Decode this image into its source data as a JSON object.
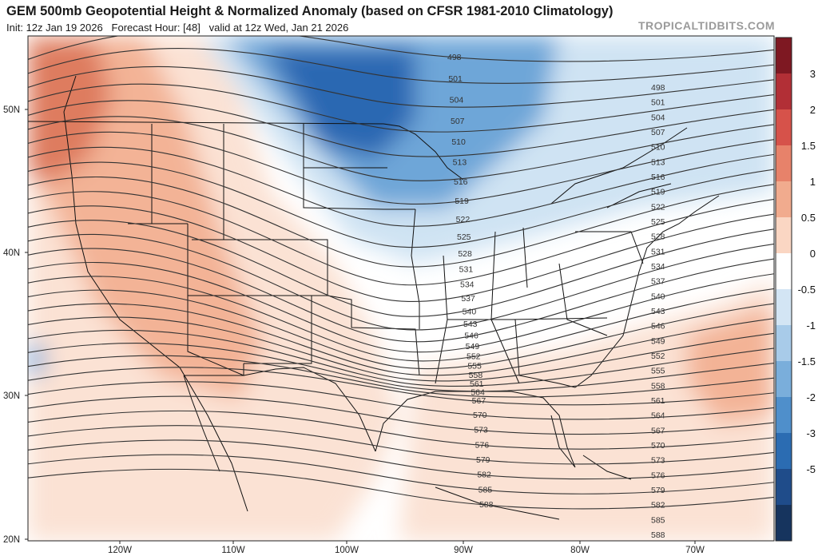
{
  "header": {
    "title": "GEM 500mb Geopotential Height & Normalized Anomaly (based on CFSR 1981-2010 Climatology)",
    "init": "Init: 12z Jan 19 2026",
    "forecast_hour": "Forecast Hour: [48]",
    "valid": "valid at 12z Wed, Jan 21 2026",
    "brand": "TROPICALTIDBITS.COM"
  },
  "map": {
    "lat_ticks": [
      "50N",
      "40N",
      "30N",
      "20N"
    ],
    "lon_ticks": [
      "120W",
      "110W",
      "100W",
      "90W",
      "80W",
      "70W"
    ],
    "contour_labels": [
      "498",
      "501",
      "504",
      "507",
      "510",
      "513",
      "516",
      "519",
      "522",
      "525",
      "528",
      "531",
      "534",
      "537",
      "540",
      "543",
      "546",
      "549",
      "552",
      "555",
      "558",
      "561",
      "564",
      "567",
      "570",
      "573",
      "576",
      "579",
      "582",
      "585",
      "588"
    ],
    "colors": {
      "strong_negative": "#2a68b2",
      "negative": "#6ea6d8",
      "weak_negative": "#cfe3f3",
      "neutral": "#ffffff",
      "weak_positive": "#fbe2d4",
      "positive": "#f3b396",
      "strong_positive": "#de7b5e"
    }
  },
  "colorbar": {
    "labels": [
      "3",
      "2",
      "1.5",
      "1",
      "0.5",
      "0",
      "-0.5",
      "-1",
      "-1.5",
      "-2",
      "-3",
      "-5"
    ],
    "colors": [
      "#7e1822",
      "#b22f36",
      "#d6524a",
      "#e7826a",
      "#f1ab8e",
      "#fad6c3",
      "#ffffff",
      "#d3e5f4",
      "#a8cbe9",
      "#7aaedb",
      "#4f8fcb",
      "#2b6cb2",
      "#1f4c8a",
      "#16345e"
    ]
  }
}
